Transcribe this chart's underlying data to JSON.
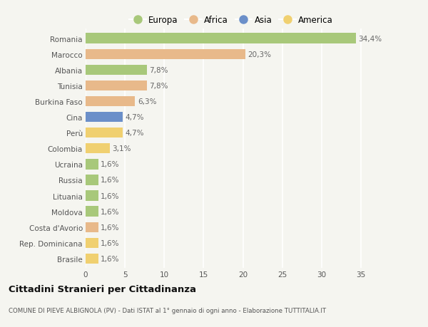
{
  "countries": [
    "Romania",
    "Marocco",
    "Albania",
    "Tunisia",
    "Burkina Faso",
    "Cina",
    "Perù",
    "Colombia",
    "Ucraina",
    "Russia",
    "Lituania",
    "Moldova",
    "Costa d'Avorio",
    "Rep. Dominicana",
    "Brasile"
  ],
  "values": [
    34.4,
    20.3,
    7.8,
    7.8,
    6.3,
    4.7,
    4.7,
    3.1,
    1.6,
    1.6,
    1.6,
    1.6,
    1.6,
    1.6,
    1.6
  ],
  "labels": [
    "34,4%",
    "20,3%",
    "7,8%",
    "7,8%",
    "6,3%",
    "4,7%",
    "4,7%",
    "3,1%",
    "1,6%",
    "1,6%",
    "1,6%",
    "1,6%",
    "1,6%",
    "1,6%",
    "1,6%"
  ],
  "continents": [
    "Europa",
    "Africa",
    "Europa",
    "Africa",
    "Africa",
    "Asia",
    "America",
    "America",
    "Europa",
    "Europa",
    "Europa",
    "Europa",
    "Africa",
    "America",
    "America"
  ],
  "colors": {
    "Europa": "#a8c87a",
    "Africa": "#e8b98a",
    "Asia": "#6b8fc9",
    "America": "#f0d070"
  },
  "legend_order": [
    "Europa",
    "Africa",
    "Asia",
    "America"
  ],
  "xlim": [
    0,
    37
  ],
  "xticks": [
    0,
    5,
    10,
    15,
    20,
    25,
    30,
    35
  ],
  "title": "Cittadini Stranieri per Cittadinanza",
  "subtitle": "COMUNE DI PIEVE ALBIGNOLA (PV) - Dati ISTAT al 1° gennaio di ogni anno - Elaborazione TUTTITALIA.IT",
  "bg_color": "#f5f5f0",
  "bar_height": 0.65,
  "grid_color": "#ffffff",
  "label_fontsize": 7.5,
  "tick_fontsize": 7.5,
  "title_fontsize": 9.5,
  "subtitle_fontsize": 6.2
}
